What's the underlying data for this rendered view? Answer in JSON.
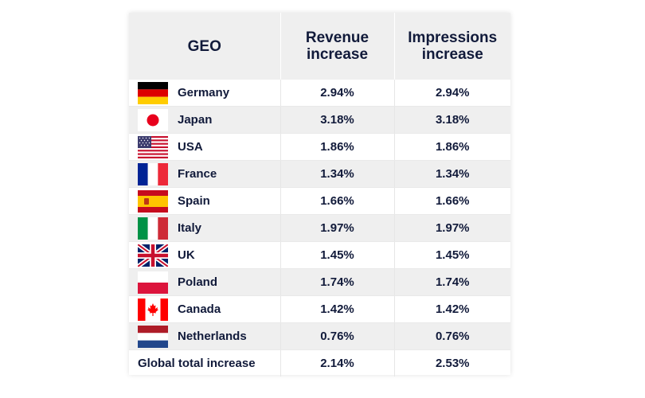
{
  "header": {
    "geo": "GEO",
    "revenue_line1": "Revenue",
    "revenue_line2": "increase",
    "impressions_line1": "Impressions",
    "impressions_line2": "increase"
  },
  "rows": [
    {
      "country": "Germany",
      "flag_icon": "germany-flag-icon",
      "revenue": "2.94%",
      "impressions": "2.94%"
    },
    {
      "country": "Japan",
      "flag_icon": "japan-flag-icon",
      "revenue": "3.18%",
      "impressions": "3.18%"
    },
    {
      "country": "USA",
      "flag_icon": "usa-flag-icon",
      "revenue": "1.86%",
      "impressions": "1.86%"
    },
    {
      "country": "France",
      "flag_icon": "france-flag-icon",
      "revenue": "1.34%",
      "impressions": "1.34%"
    },
    {
      "country": "Spain",
      "flag_icon": "spain-flag-icon",
      "revenue": "1.66%",
      "impressions": "1.66%"
    },
    {
      "country": "Italy",
      "flag_icon": "italy-flag-icon",
      "revenue": "1.97%",
      "impressions": "1.97%"
    },
    {
      "country": "UK",
      "flag_icon": "uk-flag-icon",
      "revenue": "1.45%",
      "impressions": "1.45%"
    },
    {
      "country": "Poland",
      "flag_icon": "poland-flag-icon",
      "revenue": "1.74%",
      "impressions": "1.74%"
    },
    {
      "country": "Canada",
      "flag_icon": "canada-flag-icon",
      "revenue": "1.42%",
      "impressions": "1.42%"
    },
    {
      "country": "Netherlands",
      "flag_icon": "netherlands-flag-icon",
      "revenue": "0.76%",
      "impressions": "0.76%"
    }
  ],
  "total": {
    "label": "Global total increase",
    "revenue": "2.14%",
    "impressions": "2.53%"
  },
  "colors": {
    "text": "#111a3a",
    "header_bg": "#efefef",
    "alt_row_bg": "#efefef"
  }
}
